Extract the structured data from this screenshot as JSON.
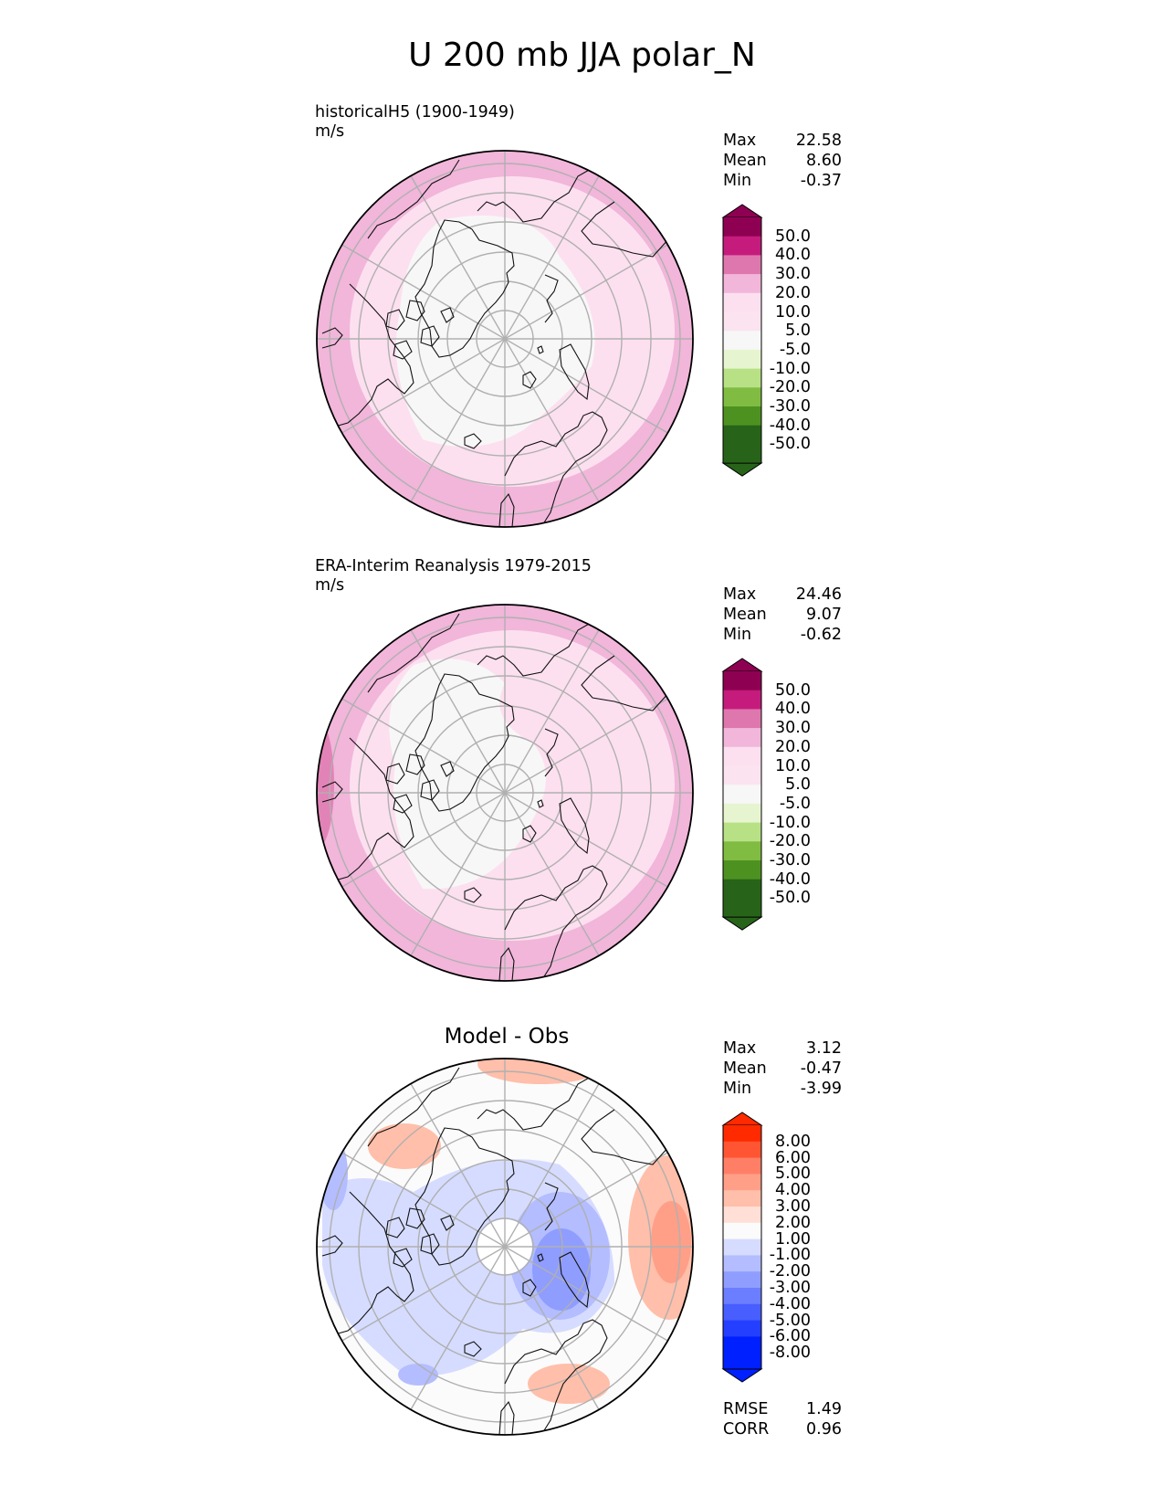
{
  "title": "U 200 mb JJA polar_N",
  "colors": {
    "land_outline": "#111111",
    "grid": "#b0b0b0",
    "pink_scale": [
      "#8e0152",
      "#c51b7d",
      "#de77ae",
      "#f1b6da",
      "#fde0ef",
      "#f7f7f7",
      "#e6f5d0",
      "#b8e186",
      "#7fbc41",
      "#4d9221",
      "#276419"
    ],
    "diff_scale": [
      "#ff2a00",
      "#ff5533",
      "#ff7f66",
      "#ff9f88",
      "#ffbfaa",
      "#ffdfd6",
      "#fbfbfb",
      "#d6dcff",
      "#b3bdff",
      "#8f9dff",
      "#6b7eff",
      "#485eff",
      "#243fff",
      "#0020ff"
    ]
  },
  "chart_data": [
    {
      "type": "polar contour map",
      "title": "historicalH5 (1900-1949)",
      "units": "m/s",
      "stats": {
        "Max": "22.58",
        "Mean": "8.60",
        "Min": "-0.37"
      },
      "colorbar": [
        "50.0",
        "40.0",
        "30.0",
        "20.0",
        "10.0",
        "5.0",
        "-5.0",
        "-10.0",
        "-20.0",
        "-30.0",
        "-40.0",
        "-50.0"
      ]
    },
    {
      "type": "polar contour map",
      "title": "ERA-Interim Reanalysis 1979-2015",
      "units": "m/s",
      "stats": {
        "Max": "24.46",
        "Mean": "9.07",
        "Min": "-0.62"
      },
      "colorbar": [
        "50.0",
        "40.0",
        "30.0",
        "20.0",
        "10.0",
        "5.0",
        "-5.0",
        "-10.0",
        "-20.0",
        "-30.0",
        "-40.0",
        "-50.0"
      ]
    },
    {
      "type": "polar contour map",
      "title": "Model - Obs",
      "stats": {
        "Max": "3.12",
        "Mean": "-0.47",
        "Min": "-3.99"
      },
      "colorbar": [
        "8.00",
        "6.00",
        "5.00",
        "4.00",
        "3.00",
        "2.00",
        "1.00",
        "-1.00",
        "-2.00",
        "-3.00",
        "-4.00",
        "-5.00",
        "-6.00",
        "-8.00"
      ],
      "metrics": {
        "RMSE": "1.49",
        "CORR": "0.96"
      }
    }
  ]
}
